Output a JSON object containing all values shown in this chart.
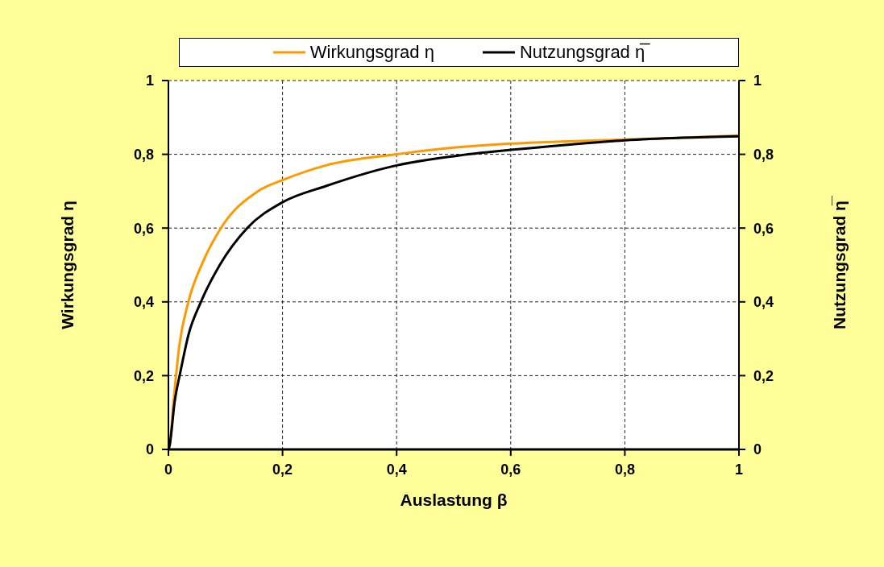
{
  "chart_data": {
    "type": "line",
    "xlabel": "Auslastung β",
    "ylabel": "Wirkungsgrad  η",
    "y2label": "Nutzungsgrad η̅",
    "series": [
      {
        "name": "Wirkungsgrad η",
        "color": "#ff9900",
        "x": [
          0,
          0.002,
          0.009,
          0.019,
          0.035,
          0.061,
          0.092,
          0.157,
          0.2,
          0.276,
          0.4,
          0.5,
          0.6,
          0.7,
          0.8,
          0.9,
          1
        ],
        "values": [
          0,
          0.01,
          0.13,
          0.28,
          0.4,
          0.51,
          0.6,
          0.7,
          0.73,
          0.77,
          0.8,
          0.818,
          0.829,
          0.835,
          0.84,
          0.845,
          0.851
        ]
      },
      {
        "name": "Nutzungsgrad η̅",
        "color": "#000000",
        "axis": "y2",
        "x": [
          0,
          0.002,
          0.011,
          0.021,
          0.035,
          0.057,
          0.09,
          0.138,
          0.2,
          0.276,
          0.4,
          0.5,
          0.6,
          0.7,
          0.8,
          0.9,
          1
        ],
        "values": [
          0,
          0.01,
          0.13,
          0.21,
          0.31,
          0.4,
          0.5,
          0.6,
          0.67,
          0.714,
          0.77,
          0.795,
          0.812,
          0.826,
          0.838,
          0.845,
          0.849
        ]
      }
    ],
    "xlim": [
      0,
      1
    ],
    "xticks": [
      0,
      {
        "value": 0.2,
        "label": "0,2"
      },
      {
        "value": 0.4,
        "label": "0,4"
      },
      {
        "value": 0.6,
        "label": "0,6"
      },
      {
        "value": 0.8,
        "label": "0,8"
      },
      1
    ],
    "ylim": [
      0,
      1
    ],
    "yticks": [
      0,
      {
        "value": 0.2,
        "label": "0,2"
      },
      {
        "value": 0.4,
        "label": "0,4"
      },
      {
        "value": 0.6,
        "label": "0,6"
      },
      {
        "value": 0.8,
        "label": "0,8"
      },
      1
    ],
    "y2lim": [
      0,
      1
    ],
    "y2ticks": [
      0,
      {
        "value": 0.2,
        "label": "0,2"
      },
      {
        "value": 0.4,
        "label": "0,4"
      },
      {
        "value": 0.6,
        "label": "0,6"
      },
      {
        "value": 0.8,
        "label": "0,8"
      },
      1
    ],
    "grid": true,
    "legend": "top",
    "marker": "none",
    "line_style": "solid"
  }
}
